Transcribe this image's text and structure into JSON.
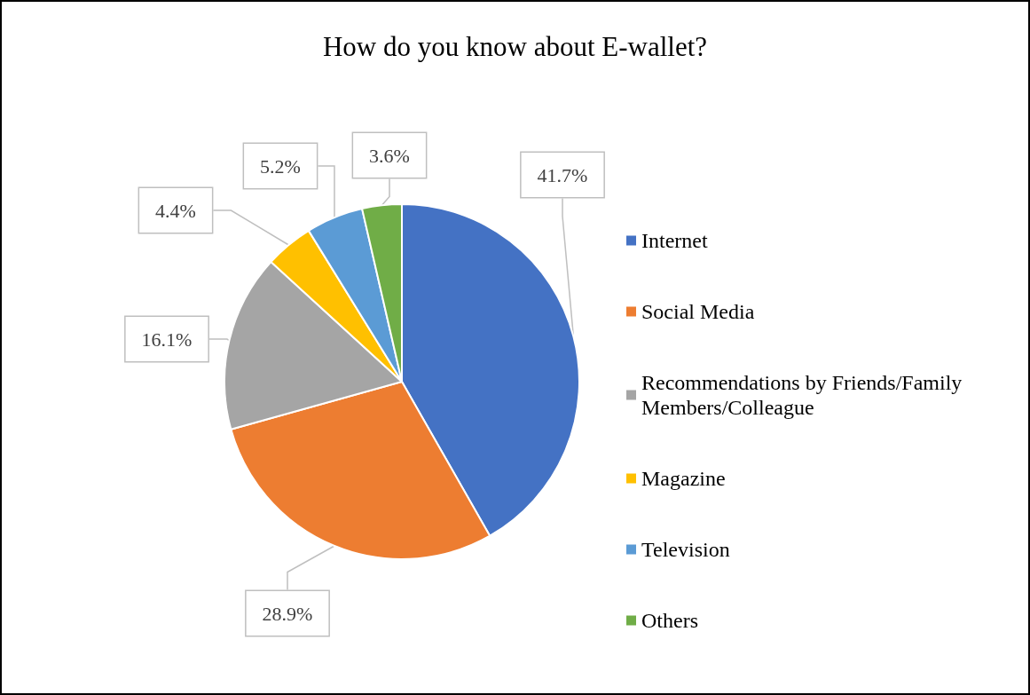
{
  "chart_data": {
    "type": "pie",
    "title": "How do you know about E-wallet?",
    "categories": [
      "Internet",
      "Social Media",
      "Recommendations by Friends/Family Members/Colleague",
      "Magazine",
      "Television",
      "Others"
    ],
    "values": [
      41.7,
      28.9,
      16.1,
      4.4,
      5.2,
      3.6
    ],
    "colors": [
      "#4472c4",
      "#ed7d31",
      "#a5a5a5",
      "#ffc000",
      "#5b9bd5",
      "#70ad47"
    ],
    "value_labels": [
      "41.7%",
      "28.9%",
      "16.1%",
      "4.4%",
      "5.2%",
      "3.6%"
    ],
    "legend": "right"
  }
}
